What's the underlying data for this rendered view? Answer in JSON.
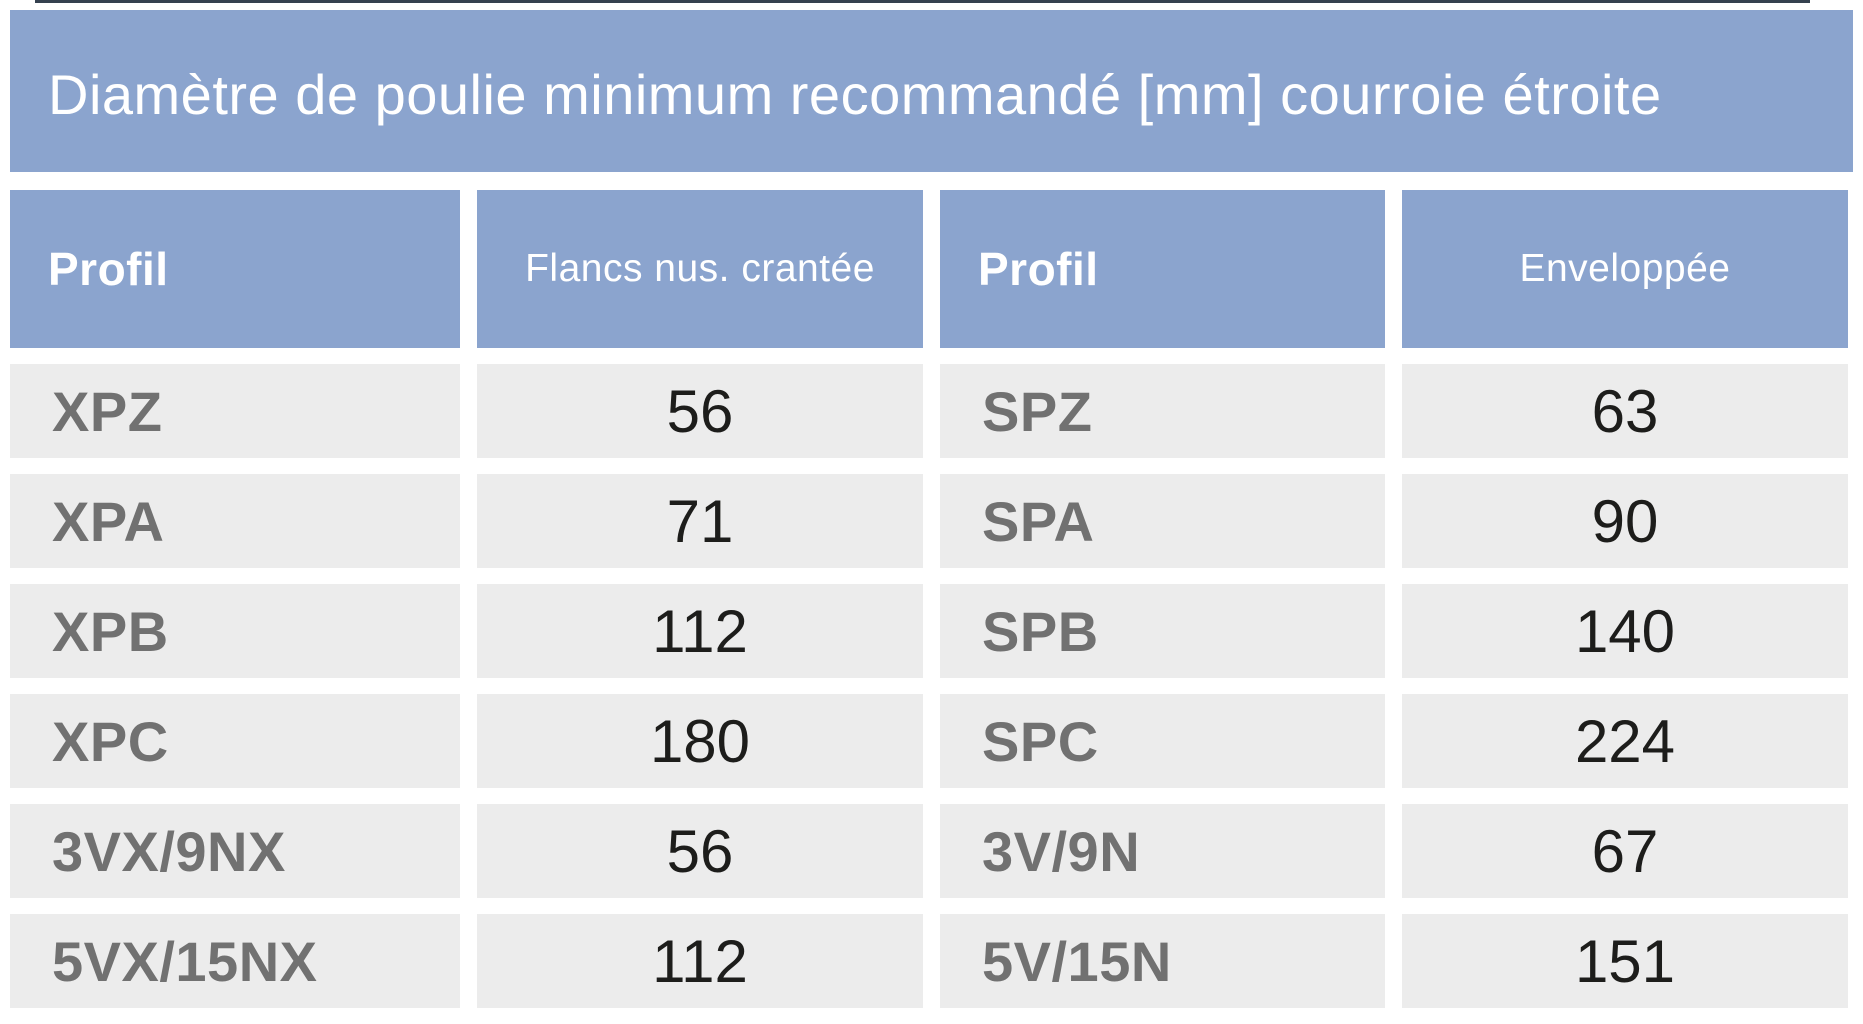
{
  "title": "Diamètre de poulie minimum recommandé [mm] courroie étroite",
  "chart_data": {
    "type": "table",
    "title": "Diamètre de poulie minimum recommandé [mm] courroie étroite",
    "unit": "mm",
    "columns": [
      "Profil",
      "Flancs nus. crantée",
      "Profil",
      "Enveloppée"
    ],
    "rows": [
      [
        "XPZ",
        "56",
        "SPZ",
        "63"
      ],
      [
        "XPA",
        "71",
        "SPA",
        "90"
      ],
      [
        "XPB",
        "112",
        "SPB",
        "140"
      ],
      [
        "XPC",
        "180",
        "SPC",
        "224"
      ],
      [
        "3VX/9NX",
        "56",
        "3V/9N",
        "67"
      ],
      [
        "5VX/15NX",
        "112",
        "5V/15N",
        "151"
      ]
    ]
  },
  "colors": {
    "header_blue": "#8ba4ce",
    "row_gray": "#ececec",
    "label_gray": "#717171",
    "value_dark": "#1d1d1b",
    "title_text": "#ffffff",
    "top_line": "#35414f"
  }
}
